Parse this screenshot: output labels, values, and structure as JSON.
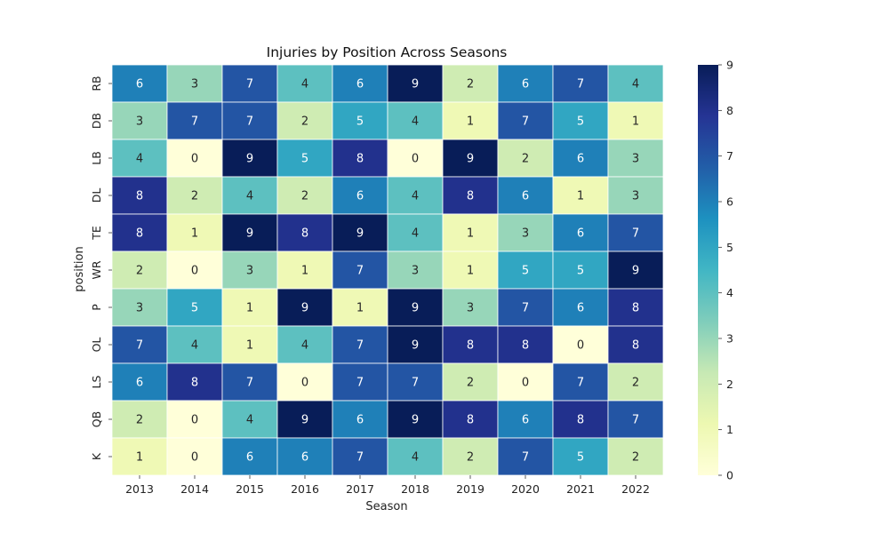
{
  "chart_data": {
    "type": "heatmap",
    "title": "Injuries by Position Across Seasons",
    "xlabel": "Season",
    "ylabel": "position",
    "x": [
      "2013",
      "2014",
      "2015",
      "2016",
      "2017",
      "2018",
      "2019",
      "2020",
      "2021",
      "2022"
    ],
    "y": [
      "RB",
      "DB",
      "LB",
      "DL",
      "TE",
      "WR",
      "P",
      "OL",
      "LS",
      "QB",
      "K"
    ],
    "values": [
      [
        6,
        3,
        7,
        4,
        6,
        9,
        2,
        6,
        7,
        4
      ],
      [
        3,
        7,
        7,
        2,
        5,
        4,
        1,
        7,
        5,
        1
      ],
      [
        4,
        0,
        9,
        5,
        8,
        0,
        9,
        2,
        6,
        3
      ],
      [
        8,
        2,
        4,
        2,
        6,
        4,
        8,
        6,
        1,
        3
      ],
      [
        8,
        1,
        9,
        8,
        9,
        4,
        1,
        3,
        6,
        7
      ],
      [
        2,
        0,
        3,
        1,
        7,
        3,
        1,
        5,
        5,
        9
      ],
      [
        3,
        5,
        1,
        9,
        1,
        9,
        3,
        7,
        6,
        8
      ],
      [
        7,
        4,
        1,
        4,
        7,
        9,
        8,
        8,
        0,
        8
      ],
      [
        6,
        8,
        7,
        0,
        7,
        7,
        2,
        0,
        7,
        2
      ],
      [
        2,
        0,
        4,
        9,
        6,
        9,
        8,
        6,
        8,
        7
      ],
      [
        1,
        0,
        6,
        6,
        7,
        4,
        2,
        7,
        5,
        2
      ]
    ],
    "colorscale": "YlGnBu",
    "colorbar": {
      "min": 0,
      "max": 9,
      "ticks": [
        "0",
        "1",
        "2",
        "3",
        "4",
        "5",
        "6",
        "7",
        "8",
        "9"
      ]
    },
    "annotations": true,
    "grid": false
  }
}
